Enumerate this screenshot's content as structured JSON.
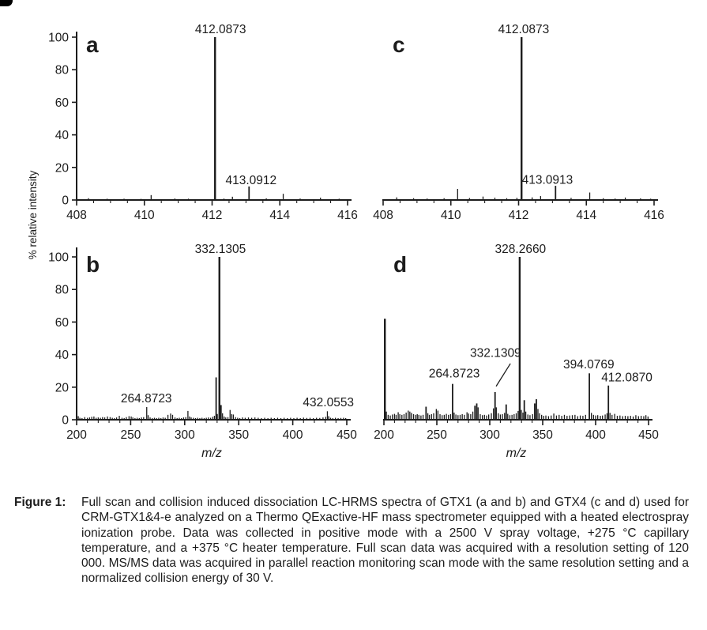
{
  "figure": {
    "y_axis_label": "% relative intensity",
    "x_axis_label": "m/z"
  },
  "caption": {
    "label": "Figure 1:",
    "text": "Full scan and collision induced dissociation LC-HRMS spectra of GTX1 (a and b) and GTX4 (c and d) used for CRM-GTX1&4-e analyzed on a Thermo QExactive-HF mass spectrometer equipped with a heated electrospray ionization probe. Data was collected in positive mode with a 2500 V spray voltage, +275 °C capillary temperature, and a +375 °C heater temperature. Full scan data was acquired with a resolution setting of 120 000. MS/MS data was acquired in parallel reaction monitoring scan mode with the same resolution setting and a normalized collision energy of 30 V."
  },
  "chart_data": [
    {
      "id": "a",
      "type": "bar",
      "panel_label": "a",
      "xlabel": "",
      "ylabel": "% relative intensity",
      "xlim": [
        408,
        416
      ],
      "ylim": [
        0,
        100
      ],
      "x_major_tick_step": 2,
      "x_minor_tick_step": 0.5,
      "x_major_ticks": [
        408,
        410,
        412,
        414,
        416
      ],
      "y_ticks": [
        0,
        20,
        40,
        60,
        80,
        100
      ],
      "peaks": [
        [
          408.35,
          1.1
        ],
        [
          408.9,
          0.8
        ],
        [
          409.4,
          0.8
        ],
        [
          409.9,
          0.7
        ],
        [
          410.2,
          3.0
        ],
        [
          410.9,
          0.9
        ],
        [
          411.3,
          0.8
        ],
        [
          412.087,
          100
        ],
        [
          412.35,
          0.9
        ],
        [
          412.6,
          2.0
        ],
        [
          413.091,
          8.3
        ],
        [
          413.6,
          1.0
        ],
        [
          414.1,
          3.8
        ],
        [
          414.6,
          0.9
        ],
        [
          415.2,
          1.4
        ],
        [
          415.75,
          0.8
        ]
      ],
      "annotations": [
        {
          "text": "412.0873",
          "x": 412.25,
          "y": 102.5
        },
        {
          "text": "413.0912",
          "x": 413.15,
          "y": 9.8
        }
      ]
    },
    {
      "id": "c",
      "type": "bar",
      "panel_label": "c",
      "xlabel": "",
      "ylabel": "",
      "xlim": [
        408,
        416
      ],
      "ylim": [
        0,
        100
      ],
      "x_major_tick_step": 2,
      "x_minor_tick_step": 0.5,
      "x_major_ticks": [
        408,
        410,
        412,
        414,
        416
      ],
      "y_ticks": [
        0,
        20,
        40,
        60,
        80,
        100
      ],
      "peaks": [
        [
          408.4,
          1.6
        ],
        [
          408.9,
          1.1
        ],
        [
          409.3,
          0.9
        ],
        [
          409.8,
          1.1
        ],
        [
          410.2,
          6.8
        ],
        [
          410.55,
          1.2
        ],
        [
          410.95,
          2.1
        ],
        [
          411.3,
          1.4
        ],
        [
          411.65,
          1.1
        ],
        [
          411.95,
          1.3
        ],
        [
          412.087,
          100
        ],
        [
          412.4,
          1.6
        ],
        [
          412.65,
          2.4
        ],
        [
          413.091,
          8.7
        ],
        [
          413.55,
          1.3
        ],
        [
          414.1,
          4.6
        ],
        [
          414.5,
          1.1
        ],
        [
          414.85,
          0.9
        ],
        [
          415.15,
          1.5
        ],
        [
          415.6,
          1.0
        ],
        [
          415.9,
          0.8
        ]
      ],
      "annotations": [
        {
          "text": "412.0873",
          "x": 412.15,
          "y": 102.5
        },
        {
          "text": "413.0913",
          "x": 412.85,
          "y": 10.0
        }
      ]
    },
    {
      "id": "b",
      "type": "bar",
      "panel_label": "b",
      "xlabel": "m/z",
      "ylabel": "% relative intensity",
      "xlim": [
        200,
        450
      ],
      "ylim": [
        0,
        100
      ],
      "x_major_tick_step": 50,
      "x_minor_tick_step": 10,
      "x_major_ticks": [
        200,
        250,
        300,
        350,
        400,
        450
      ],
      "y_ticks": [
        0,
        20,
        40,
        60,
        80,
        100
      ],
      "peaks": [
        [
          201.5,
          2.2
        ],
        [
          203,
          1.2
        ],
        [
          205,
          1.0
        ],
        [
          207.5,
          1.6
        ],
        [
          210,
          1.2
        ],
        [
          212,
          1.4
        ],
        [
          214,
          1.8
        ],
        [
          216,
          2.0
        ],
        [
          218,
          1.2
        ],
        [
          220,
          1.4
        ],
        [
          222,
          1.2
        ],
        [
          224,
          1.6
        ],
        [
          226,
          1.4
        ],
        [
          228.5,
          2.0
        ],
        [
          231,
          1.6
        ],
        [
          233,
          1.2
        ],
        [
          235,
          1.0
        ],
        [
          237,
          1.4
        ],
        [
          239.5,
          2.4
        ],
        [
          242,
          1.2
        ],
        [
          244,
          1.0
        ],
        [
          246,
          1.6
        ],
        [
          248.5,
          2.2
        ],
        [
          250.5,
          2.0
        ],
        [
          252,
          1.4
        ],
        [
          254,
          1.0
        ],
        [
          256,
          1.2
        ],
        [
          258,
          1.0
        ],
        [
          260,
          1.4
        ],
        [
          262,
          1.6
        ],
        [
          264.872,
          7.8
        ],
        [
          266.2,
          2.8
        ],
        [
          268,
          1.4
        ],
        [
          270,
          1.0
        ],
        [
          272,
          1.2
        ],
        [
          274,
          1.0
        ],
        [
          276,
          1.2
        ],
        [
          278,
          1.0
        ],
        [
          280,
          1.4
        ],
        [
          282,
          1.2
        ],
        [
          284.5,
          3.0
        ],
        [
          287,
          3.8
        ],
        [
          288.8,
          3.0
        ],
        [
          291,
          1.4
        ],
        [
          293,
          1.0
        ],
        [
          295,
          1.2
        ],
        [
          297,
          1.0
        ],
        [
          299,
          1.4
        ],
        [
          301,
          1.6
        ],
        [
          303,
          5.4
        ],
        [
          304.5,
          2.0
        ],
        [
          306,
          1.4
        ],
        [
          308,
          1.2
        ],
        [
          310,
          1.0
        ],
        [
          312,
          1.2
        ],
        [
          314,
          1.0
        ],
        [
          316,
          1.2
        ],
        [
          318,
          1.0
        ],
        [
          320,
          1.2
        ],
        [
          322,
          1.4
        ],
        [
          324,
          1.2
        ],
        [
          326,
          1.8
        ],
        [
          327.5,
          2.4
        ],
        [
          329.1,
          26
        ],
        [
          330.2,
          3.5
        ],
        [
          332.131,
          100
        ],
        [
          333.6,
          9
        ],
        [
          335,
          4
        ],
        [
          336.5,
          2
        ],
        [
          338,
          1.4
        ],
        [
          340,
          1.6
        ],
        [
          342,
          6
        ],
        [
          343.5,
          3.5
        ],
        [
          345,
          3.2
        ],
        [
          347,
          1.6
        ],
        [
          349,
          1.2
        ],
        [
          351,
          1.0
        ],
        [
          353.5,
          1.4
        ],
        [
          356,
          1.2
        ],
        [
          359,
          1.4
        ],
        [
          362,
          1.2
        ],
        [
          365,
          1.4
        ],
        [
          368,
          1.2
        ],
        [
          371,
          1.0
        ],
        [
          374,
          1.2
        ],
        [
          377,
          1.0
        ],
        [
          380,
          1.2
        ],
        [
          383,
          1.0
        ],
        [
          386,
          1.2
        ],
        [
          389,
          1.0
        ],
        [
          392,
          1.2
        ],
        [
          395,
          1.0
        ],
        [
          398,
          1.2
        ],
        [
          401,
          1.0
        ],
        [
          404,
          1.2
        ],
        [
          407,
          1.0
        ],
        [
          410,
          1.3
        ],
        [
          413,
          1.1
        ],
        [
          416,
          1.2
        ],
        [
          419,
          1.0
        ],
        [
          422,
          1.2
        ],
        [
          425,
          1.1
        ],
        [
          428,
          1.4
        ],
        [
          430.5,
          1.8
        ],
        [
          432.055,
          5.2
        ],
        [
          433.3,
          2.2
        ],
        [
          435,
          1.2
        ],
        [
          437,
          1.0
        ],
        [
          439.5,
          1.2
        ],
        [
          442,
          1.0
        ],
        [
          444.5,
          1.1
        ],
        [
          447,
          1.2
        ],
        [
          449,
          1.0
        ]
      ],
      "annotations": [
        {
          "text": "332.1305",
          "x": 333.0,
          "y": 102.5
        },
        {
          "text": "264.8723",
          "x": 264.5,
          "y": 10.8
        },
        {
          "text": "432.0553",
          "x": 433.0,
          "y": 8.2
        }
      ]
    },
    {
      "id": "d",
      "type": "bar",
      "panel_label": "d",
      "xlabel": "m/z",
      "ylabel": "",
      "xlim": [
        200,
        450
      ],
      "ylim": [
        0,
        100
      ],
      "x_major_tick_step": 50,
      "x_minor_tick_step": 10,
      "x_major_ticks": [
        200,
        250,
        300,
        350,
        400,
        450
      ],
      "y_ticks": [
        0,
        20,
        40,
        60,
        80,
        100
      ],
      "peaks": [
        [
          200.9,
          62
        ],
        [
          202.3,
          5
        ],
        [
          204,
          3
        ],
        [
          206,
          2.6
        ],
        [
          208,
          3.2
        ],
        [
          210,
          3.6
        ],
        [
          211.5,
          3
        ],
        [
          213.5,
          4.6
        ],
        [
          215,
          3.4
        ],
        [
          217,
          3
        ],
        [
          219,
          3.4
        ],
        [
          221,
          4.4
        ],
        [
          223,
          5.6
        ],
        [
          224.5,
          5
        ],
        [
          226,
          4.2
        ],
        [
          228,
          3.4
        ],
        [
          230,
          3
        ],
        [
          231.5,
          3.4
        ],
        [
          233,
          3
        ],
        [
          235,
          2.6
        ],
        [
          237,
          3
        ],
        [
          239.8,
          8
        ],
        [
          241.5,
          4
        ],
        [
          243,
          3
        ],
        [
          245,
          3.4
        ],
        [
          247,
          4
        ],
        [
          249.5,
          6.6
        ],
        [
          251,
          5.6
        ],
        [
          253,
          3.4
        ],
        [
          255,
          2.8
        ],
        [
          257,
          3
        ],
        [
          259,
          3.6
        ],
        [
          261,
          3
        ],
        [
          263,
          3.4
        ],
        [
          264.872,
          22
        ],
        [
          266.3,
          4.4
        ],
        [
          268,
          3.2
        ],
        [
          270,
          2.8
        ],
        [
          272,
          3
        ],
        [
          274,
          3.4
        ],
        [
          276,
          3
        ],
        [
          278.5,
          4.6
        ],
        [
          280,
          3.8
        ],
        [
          282,
          3.4
        ],
        [
          284,
          5
        ],
        [
          286,
          8.6
        ],
        [
          287.7,
          10
        ],
        [
          289,
          7.6
        ],
        [
          291,
          3.4
        ],
        [
          293,
          2.8
        ],
        [
          295,
          3
        ],
        [
          297,
          2.6
        ],
        [
          299,
          3.2
        ],
        [
          301.5,
          4
        ],
        [
          303.5,
          7
        ],
        [
          305,
          17
        ],
        [
          306.2,
          7.6
        ],
        [
          308,
          4
        ],
        [
          310,
          3.2
        ],
        [
          312,
          3.4
        ],
        [
          314,
          4.2
        ],
        [
          315.5,
          9.4
        ],
        [
          317,
          3.6
        ],
        [
          319,
          2.8
        ],
        [
          321,
          3
        ],
        [
          323,
          3.4
        ],
        [
          325,
          4
        ],
        [
          326.8,
          5.4
        ],
        [
          328.266,
          100
        ],
        [
          329.8,
          6
        ],
        [
          331.3,
          4.4
        ],
        [
          332.6,
          12
        ],
        [
          334,
          5
        ],
        [
          336,
          3.2
        ],
        [
          338,
          2.8
        ],
        [
          340.5,
          3.4
        ],
        [
          342.5,
          10
        ],
        [
          344,
          12.6
        ],
        [
          345.5,
          6.6
        ],
        [
          347,
          4
        ],
        [
          349,
          3
        ],
        [
          351,
          2.4
        ],
        [
          353,
          2.6
        ],
        [
          355.5,
          2.2
        ],
        [
          358,
          2.6
        ],
        [
          360.5,
          3.8
        ],
        [
          363,
          2.6
        ],
        [
          365.5,
          3
        ],
        [
          368,
          2.4
        ],
        [
          370.5,
          3
        ],
        [
          373,
          2.4
        ],
        [
          375.5,
          2.6
        ],
        [
          378,
          2.8
        ],
        [
          380.5,
          3
        ],
        [
          383,
          2.2
        ],
        [
          385.5,
          2.6
        ],
        [
          388,
          2.4
        ],
        [
          390.5,
          3
        ],
        [
          394.077,
          28.5
        ],
        [
          396,
          4.2
        ],
        [
          398,
          3
        ],
        [
          400,
          2.6
        ],
        [
          402,
          2.8
        ],
        [
          404.5,
          2.4
        ],
        [
          406.5,
          2.6
        ],
        [
          409,
          3.2
        ],
        [
          410.8,
          4
        ],
        [
          412.087,
          21
        ],
        [
          413.6,
          4.2
        ],
        [
          415.5,
          3
        ],
        [
          418,
          3.6
        ],
        [
          420.5,
          2.4
        ],
        [
          423,
          2.6
        ],
        [
          425.5,
          2.2
        ],
        [
          428,
          2.4
        ],
        [
          430.5,
          2.2
        ],
        [
          433,
          2.4
        ],
        [
          435.5,
          2
        ],
        [
          438,
          2.8
        ],
        [
          440.5,
          2.2
        ],
        [
          443,
          2.4
        ],
        [
          445.5,
          2.2
        ],
        [
          447.5,
          2.8
        ],
        [
          449.5,
          2
        ]
      ],
      "annotations": [
        {
          "text": "328.2660",
          "x": 329.0,
          "y": 102.5
        },
        {
          "text": "264.8723",
          "x": 266.5,
          "y": 26
        },
        {
          "text": "332.1309",
          "x": 305.5,
          "y": 38.5,
          "leader": [
            319.5,
            34.5,
            306,
            20.5
          ]
        },
        {
          "text": "394.0769",
          "x": 393.5,
          "y": 31.5
        },
        {
          "text": "412.0870",
          "x": 429.5,
          "y": 23.5
        }
      ]
    }
  ]
}
